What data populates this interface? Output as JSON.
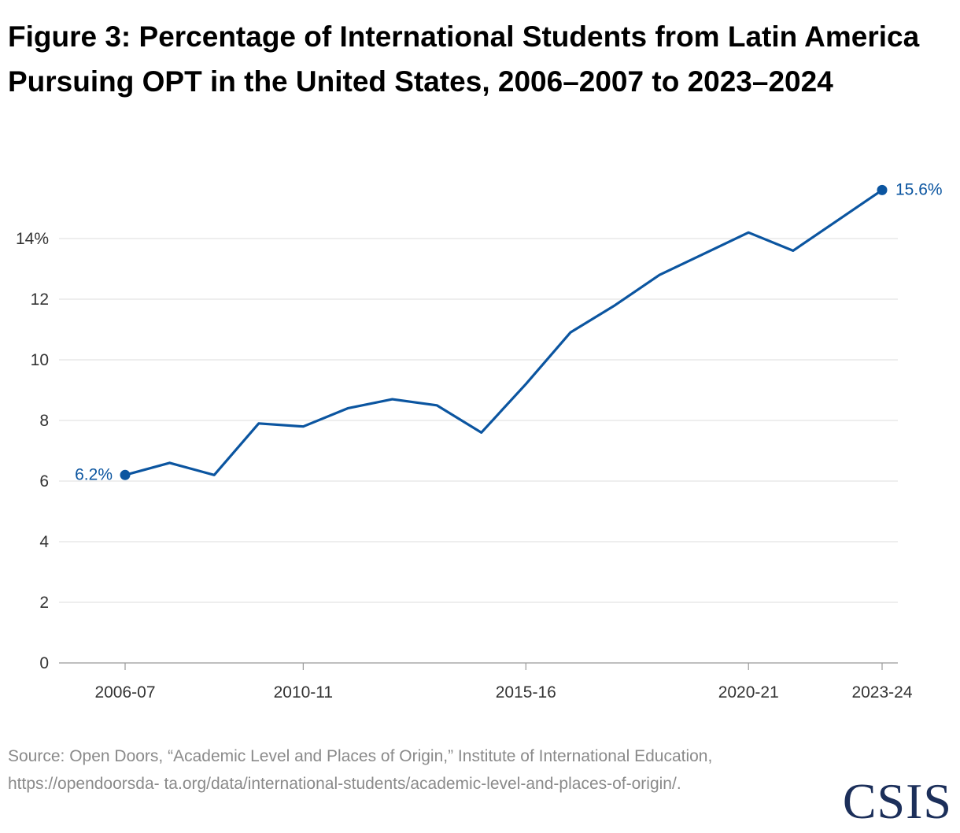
{
  "title": "Figure 3: Percentage of International Students from Latin America Pursuing OPT in the United States, 2006–2007 to 2023–2024",
  "source": "Source: Open Doors, “Academic Level and Places of Origin,” Institute of International Education, https://opendoorsda- ta.org/data/international-students/academic-level-and-places-of-origin/.",
  "logo": "CSIS",
  "colors": {
    "line": "#0b55a0",
    "grid": "#dddddd",
    "axis": "#999999",
    "text": "#333333"
  },
  "chart_data": {
    "type": "line",
    "x": [
      "2006-07",
      "2007-08",
      "2008-09",
      "2009-10",
      "2010-11",
      "2011-12",
      "2012-13",
      "2013-14",
      "2014-15",
      "2015-16",
      "2016-17",
      "2017-18",
      "2018-19",
      "2019-20",
      "2020-21",
      "2021-22",
      "2022-23",
      "2023-24"
    ],
    "values": [
      6.2,
      6.6,
      6.2,
      7.9,
      7.8,
      8.4,
      8.7,
      8.5,
      7.6,
      9.2,
      10.9,
      11.8,
      12.8,
      13.5,
      14.2,
      13.6,
      14.6,
      15.6
    ],
    "ylim": [
      0,
      16
    ],
    "y_ticks": [
      0,
      2,
      4,
      6,
      8,
      10,
      12,
      14
    ],
    "y_tick_labels": [
      "0",
      "2",
      "4",
      "6",
      "8",
      "10",
      "12",
      "14%"
    ],
    "x_tick_labels": [
      "2006-07",
      "2010-11",
      "2015-16",
      "2020-21",
      "2023-24"
    ],
    "annotations": [
      {
        "x": "2006-07",
        "text": "6.2%"
      },
      {
        "x": "2023-24",
        "text": "15.6%"
      }
    ],
    "grid": true
  }
}
